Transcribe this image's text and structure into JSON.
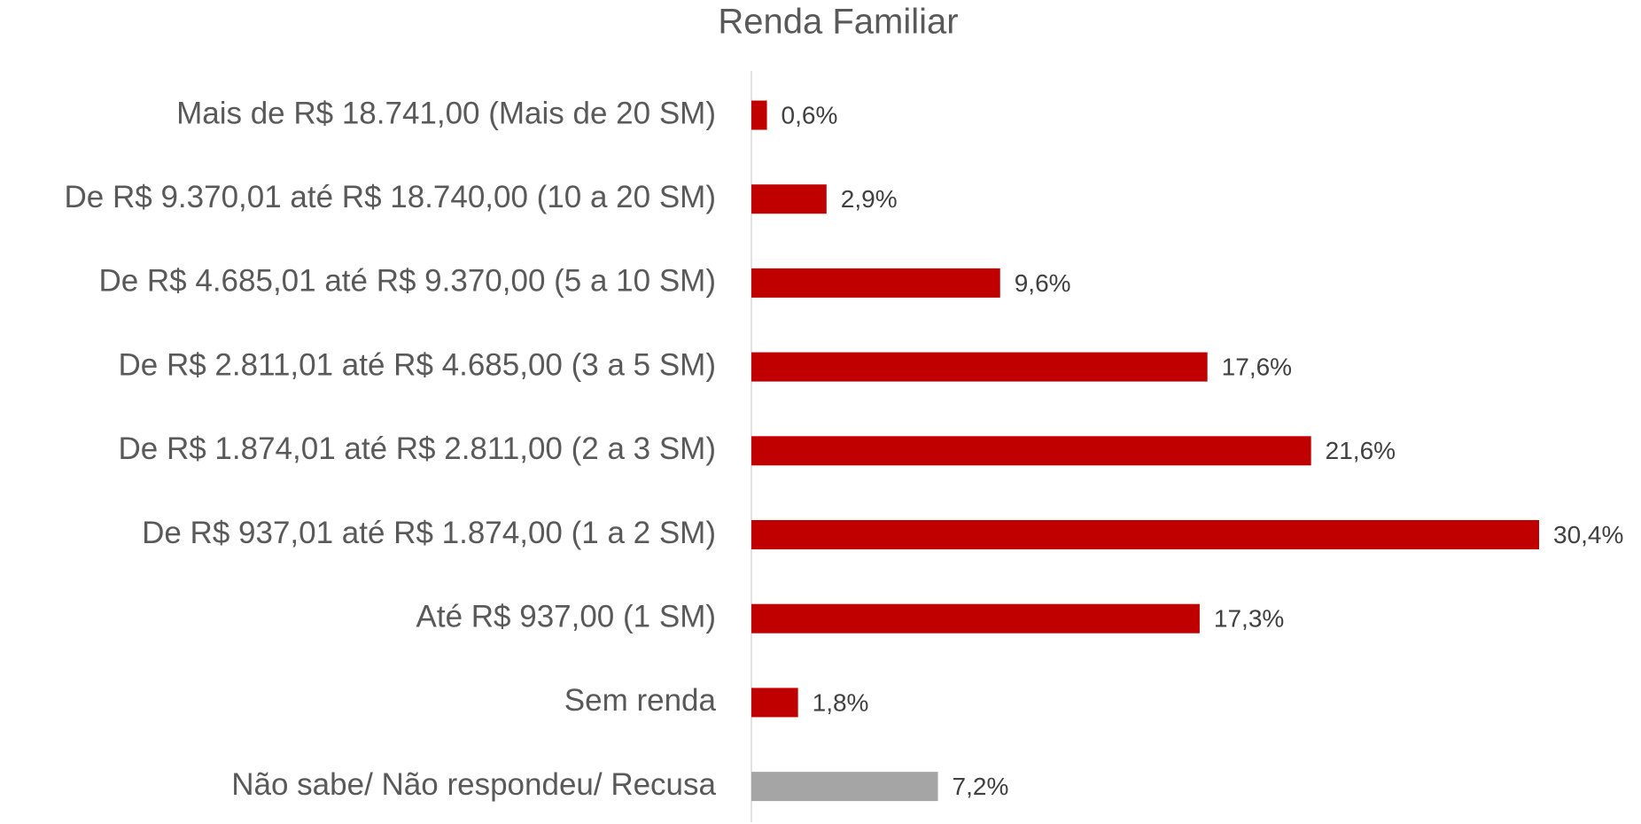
{
  "chart_data": {
    "type": "bar",
    "orientation": "horizontal",
    "title": "Renda Familiar",
    "categories": [
      "Mais de R$ 18.741,00 (Mais de 20 SM)",
      "De R$ 9.370,01 até R$ 18.740,00 (10 a 20 SM)",
      "De R$ 4.685,01 até R$ 9.370,00 (5 a 10 SM)",
      "De R$ 2.811,01 até R$ 4.685,00 (3 a 5 SM)",
      "De R$ 1.874,01 até R$ 2.811,00 (2 a 3 SM)",
      "De R$ 937,01 até R$ 1.874,00 (1 a 2 SM)",
      "Até R$ 937,00 (1 SM)",
      "Sem renda",
      "Não sabe/ Não respondeu/ Recusa"
    ],
    "values": [
      0.6,
      2.9,
      9.6,
      17.6,
      21.6,
      30.4,
      17.3,
      1.8,
      7.2
    ],
    "value_labels": [
      "0,6%",
      "2,9%",
      "9,6%",
      "17,6%",
      "21,6%",
      "30,4%",
      "17,3%",
      "1,8%",
      "7,2%"
    ],
    "colors": [
      "#c00000",
      "#c00000",
      "#c00000",
      "#c00000",
      "#c00000",
      "#c00000",
      "#c00000",
      "#c00000",
      "#a5a5a5"
    ]
  }
}
